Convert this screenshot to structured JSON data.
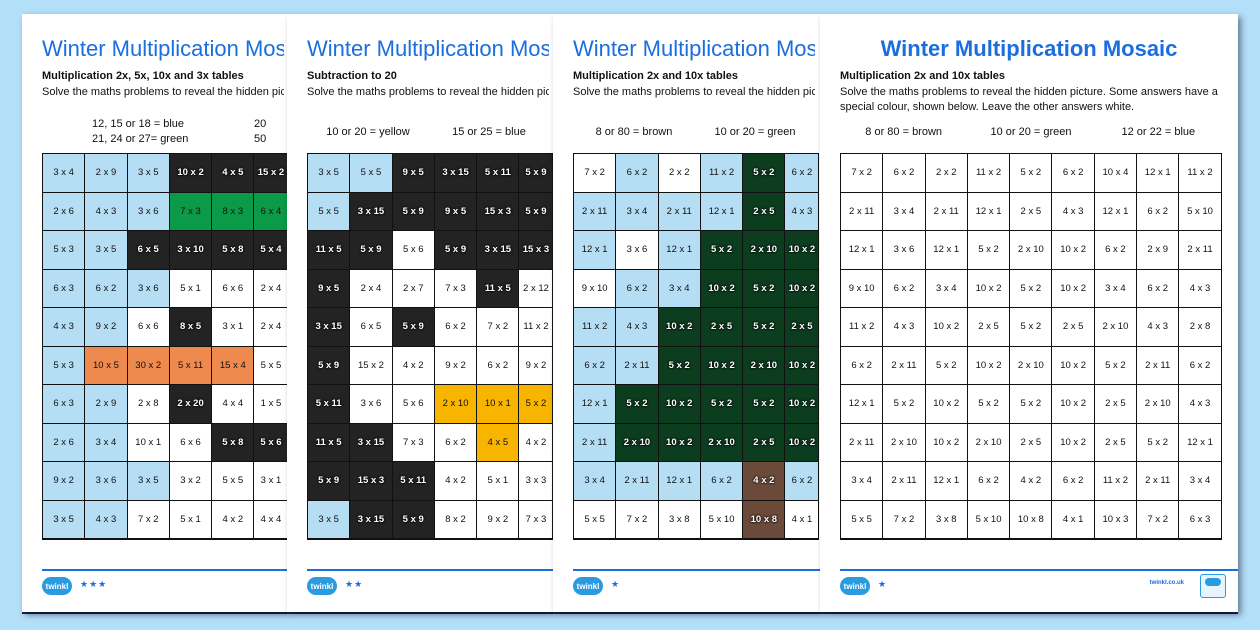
{
  "palette": {
    "w": "#ffffff",
    "b": "#b5def5",
    "k": "#232323",
    "g": "#0a9a48",
    "o": "#ee8a4e",
    "y": "#f7b500",
    "d": "#0c3d1f",
    "r": "#6b4a3a"
  },
  "sheets": [
    {
      "title": "Winter Multiplication Mosaic",
      "subtitle": "Multiplication 2x, 5x, 10x and 3x tables",
      "instructions": "Solve the maths problems to reveal the hidden picture. Some answers have a special colour, shown below. Leave the other answers white.",
      "legend": [
        "12, 15 or 18 = blue",
        "20",
        "21, 24 or 27= green",
        "50"
      ],
      "stars": "★★★",
      "grid": [
        [
          "3 x 4",
          "2 x 9",
          "3 x 5",
          "10 x 2",
          "4 x 5",
          "15 x 2"
        ],
        [
          "2 x 6",
          "4 x 3",
          "3 x 6",
          "7 x 3",
          "8 x 3",
          "6 x 4"
        ],
        [
          "5 x 3",
          "3 x 5",
          "6 x 5",
          "3 x 10",
          "5 x 8",
          "5 x 4"
        ],
        [
          "6 x 3",
          "6 x 2",
          "3 x 6",
          "5 x 1",
          "6 x 6",
          "2 x 4"
        ],
        [
          "4 x 3",
          "9 x 2",
          "6 x 6",
          "8 x 5",
          "3 x 1",
          "2 x 4"
        ],
        [
          "5 x 3",
          "10 x 5",
          "30 x 2",
          "5 x 11",
          "15 x 4",
          "5 x 5"
        ],
        [
          "6 x 3",
          "2 x 9",
          "2 x 8",
          "2 x 20",
          "4 x 4",
          "1 x 5"
        ],
        [
          "2 x 6",
          "3 x 4",
          "10 x 1",
          "6 x 6",
          "5 x 8",
          "5 x 6"
        ],
        [
          "9 x 2",
          "3 x 6",
          "3 x 5",
          "3 x 2",
          "5 x 5",
          "3 x 1"
        ],
        [
          "3 x 5",
          "4 x 3",
          "7 x 2",
          "5 x 1",
          "4 x 2",
          "4 x 4"
        ]
      ],
      "colors": [
        "bbbkkk",
        "bbbggg",
        "bbkkkk",
        "bbbwww",
        "bbwkww",
        "boooow",
        "bbwkww",
        "bbwwkk",
        "bbbwww",
        "bbwwww"
      ]
    },
    {
      "title": "Winter Multiplication Mosaic",
      "subtitle": "Subtraction to 20",
      "instructions": "Solve the maths problems to reveal the hidden picture. Some answers have a special colour, shown below. Leave the other answers white.",
      "legend": [
        "10 or 20 = yellow",
        "15 or 25 = blue"
      ],
      "stars": "★★",
      "grid": [
        [
          "3 x 5",
          "5 x 5",
          "9 x 5",
          "3 x 15",
          "5 x 11",
          "5 x 9"
        ],
        [
          "5 x 5",
          "3 x 15",
          "5 x 9",
          "9 x 5",
          "15 x 3",
          "5 x 9"
        ],
        [
          "11 x 5",
          "5 x 9",
          "5 x 6",
          "5 x 9",
          "3 x 15",
          "15 x 3"
        ],
        [
          "9 x 5",
          "2 x 4",
          "2 x 7",
          "7 x 3",
          "11 x 5",
          "2 x 12"
        ],
        [
          "3 x 15",
          "6 x 5",
          "5 x 9",
          "6 x 2",
          "7 x 2",
          "11 x 2"
        ],
        [
          "5 x 9",
          "15 x 2",
          "4 x 2",
          "9 x 2",
          "6 x 2",
          "9 x 2"
        ],
        [
          "5 x 11",
          "3 x 6",
          "5 x 6",
          "2 x 10",
          "10 x 1",
          "5 x 2"
        ],
        [
          "11 x 5",
          "3 x 15",
          "7 x 3",
          "6 x 2",
          "4 x 5",
          "4 x 2"
        ],
        [
          "5 x 9",
          "15 x 3",
          "5 x 11",
          "4 x 2",
          "5 x 1",
          "3 x 3"
        ],
        [
          "3 x 5",
          "3 x 15",
          "5 x 9",
          "8 x 2",
          "9 x 2",
          "7 x 3"
        ]
      ],
      "colors": [
        "bbkkkk",
        "bkkkkk",
        "kkwkkk",
        "kwwwkw",
        "kwkwww",
        "kwwwww",
        "kwwyyy",
        "kkwwyw",
        "kkkwww",
        "bkkwww"
      ]
    },
    {
      "title": "Winter Multiplication Mosaic",
      "subtitle": "Multiplication 2x and 10x tables",
      "instructions": "Solve the maths problems to reveal the hidden picture. Some answers have a special colour, shown below. Leave the other answers white.",
      "legend": [
        "8 or 80 = brown",
        "10 or 20 = green"
      ],
      "stars": "★",
      "grid": [
        [
          "7 x 2",
          "6 x 2",
          "2 x 2",
          "11 x 2",
          "5 x 2",
          "6 x 2"
        ],
        [
          "2 x 11",
          "3 x 4",
          "2 x 11",
          "12 x 1",
          "2 x 5",
          "4 x 3"
        ],
        [
          "12 x 1",
          "3 x 6",
          "12 x 1",
          "5 x 2",
          "2 x 10",
          "10 x 2"
        ],
        [
          "9 x 10",
          "6 x 2",
          "3 x 4",
          "10 x 2",
          "5 x 2",
          "10 x 2"
        ],
        [
          "11 x 2",
          "4 x 3",
          "10 x 2",
          "2 x 5",
          "5 x 2",
          "2 x 5"
        ],
        [
          "6 x 2",
          "2 x 11",
          "5 x 2",
          "10 x 2",
          "2 x 10",
          "10 x 2"
        ],
        [
          "12 x 1",
          "5 x 2",
          "10 x 2",
          "5 x 2",
          "5 x 2",
          "10 x 2"
        ],
        [
          "2 x 11",
          "2 x 10",
          "10 x 2",
          "2 x 10",
          "2 x 5",
          "10 x 2"
        ],
        [
          "3 x 4",
          "2 x 11",
          "12 x 1",
          "6 x 2",
          "4 x 2",
          "6 x 2"
        ],
        [
          "5 x 5",
          "7 x 2",
          "3 x 8",
          "5 x 10",
          "10 x 8",
          "4 x 1"
        ]
      ],
      "colors": [
        "wbwbdb",
        "bbbbdb",
        "bwbddd",
        "wbbddd",
        "bbdddd",
        "bbdddd",
        "bddddd",
        "bddddd",
        "bbbbrb",
        "wwwwrw"
      ]
    },
    {
      "title": "Winter Multiplication Mosaic",
      "subtitle": "Multiplication 2x and 10x tables",
      "instructions": "Solve the maths problems to reveal the hidden picture. Some answers have a special colour, shown below. Leave the other answers white.",
      "legend": [
        "8 or 80 = brown",
        "10 or 20 = green",
        "12 or 22 = blue"
      ],
      "stars": "★",
      "site": "twinkl.co.uk",
      "grid": [
        [
          "7 x 2",
          "6 x 2",
          "2 x 2",
          "11 x 2",
          "5 x 2",
          "6 x 2",
          "10 x 4",
          "12 x 1",
          "11 x 2"
        ],
        [
          "2 x 11",
          "3 x 4",
          "2 x 11",
          "12 x 1",
          "2 x 5",
          "4 x 3",
          "12 x 1",
          "6 x 2",
          "5 x 10"
        ],
        [
          "12 x 1",
          "3 x 6",
          "12 x 1",
          "5 x 2",
          "2 x 10",
          "10 x 2",
          "6 x 2",
          "2 x 9",
          "2 x 11"
        ],
        [
          "9 x 10",
          "6 x 2",
          "3 x 4",
          "10 x 2",
          "5 x 2",
          "10 x 2",
          "3 x 4",
          "6 x 2",
          "4 x 3"
        ],
        [
          "11 x 2",
          "4 x 3",
          "10 x 2",
          "2 x 5",
          "5 x 2",
          "2 x 5",
          "2 x 10",
          "4 x 3",
          "2 x 8"
        ],
        [
          "6 x 2",
          "2 x 11",
          "5 x 2",
          "10 x 2",
          "2 x 10",
          "10 x 2",
          "5 x 2",
          "2 x 11",
          "6 x 2"
        ],
        [
          "12 x 1",
          "5 x 2",
          "10 x 2",
          "5 x 2",
          "5 x 2",
          "10 x 2",
          "2 x 5",
          "2 x 10",
          "4 x 3"
        ],
        [
          "2 x 11",
          "2 x 10",
          "10 x 2",
          "2 x 10",
          "2 x 5",
          "10 x 2",
          "2 x 5",
          "5 x 2",
          "12 x 1"
        ],
        [
          "3 x 4",
          "2 x 11",
          "12 x 1",
          "6 x 2",
          "4 x 2",
          "6 x 2",
          "11 x 2",
          "2 x 11",
          "3 x 4"
        ],
        [
          "5 x 5",
          "7 x 2",
          "3 x 8",
          "5 x 10",
          "10 x 8",
          "4 x 1",
          "10 x 3",
          "7 x 2",
          "6 x 3"
        ]
      ],
      "colors": [
        "wwwwwwwww",
        "wwwwwwwww",
        "wwwwwwwww",
        "wwwwwwwww",
        "wwwwwwwww",
        "wwwwwwwww",
        "wwwwwwwww",
        "wwwwwwwww",
        "wwwwwwwww",
        "wwwwwwwww"
      ]
    }
  ],
  "logo_text": "twinkl"
}
